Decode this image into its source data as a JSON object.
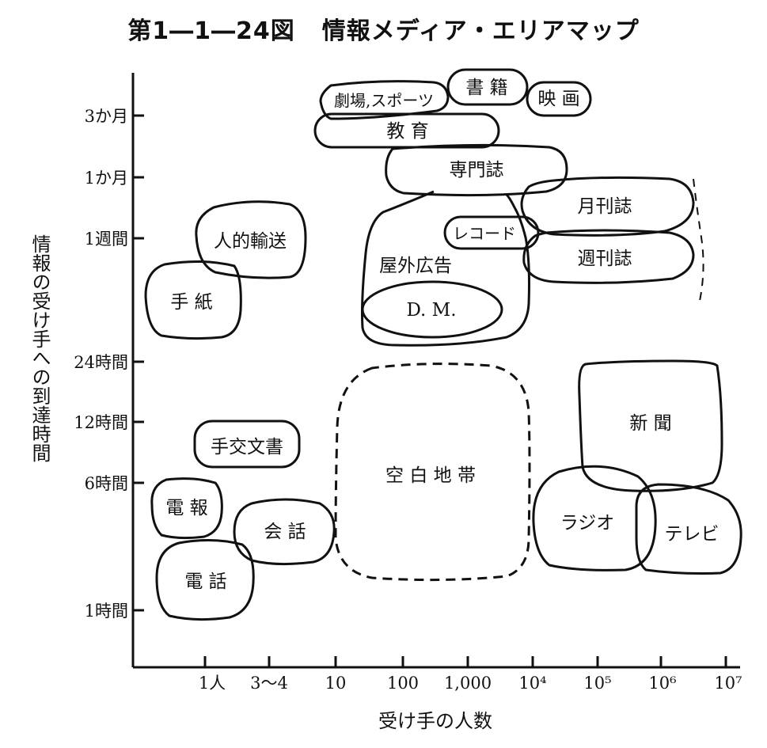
{
  "figure": {
    "number": "第1―1―24図",
    "title": "情報メディア・エリアマップ"
  },
  "axes": {
    "ylabel": "情報の受け手への到達時間",
    "xlabel": "受け手の人数",
    "y_ticks": [
      "3か月",
      "1か月",
      "1週間",
      "24時間",
      "12時間",
      "6時間",
      "1時間"
    ],
    "x_ticks": [
      "1人",
      "3〜4",
      "10",
      "100",
      "1,000",
      "10⁴",
      "10⁵",
      "10⁶",
      "10⁷"
    ]
  },
  "regions": {
    "theater": "劇場,スポーツ",
    "books": "書 籍",
    "movies": "映 画",
    "education": "教 育",
    "journals": "専門誌",
    "monthly": "月刊誌",
    "record": "レコード",
    "weekly": "週刊誌",
    "outdoor": "屋外広告",
    "dm": "D. M.",
    "personal": "人的輸送",
    "letter": "手 紙",
    "blank": "空 白 地 帯",
    "newspaper": "新 聞",
    "documents": "手交文書",
    "telegram": "電 報",
    "conversation": "会 話",
    "phone": "電 話",
    "radio": "ラジオ",
    "tv": "テレビ"
  }
}
